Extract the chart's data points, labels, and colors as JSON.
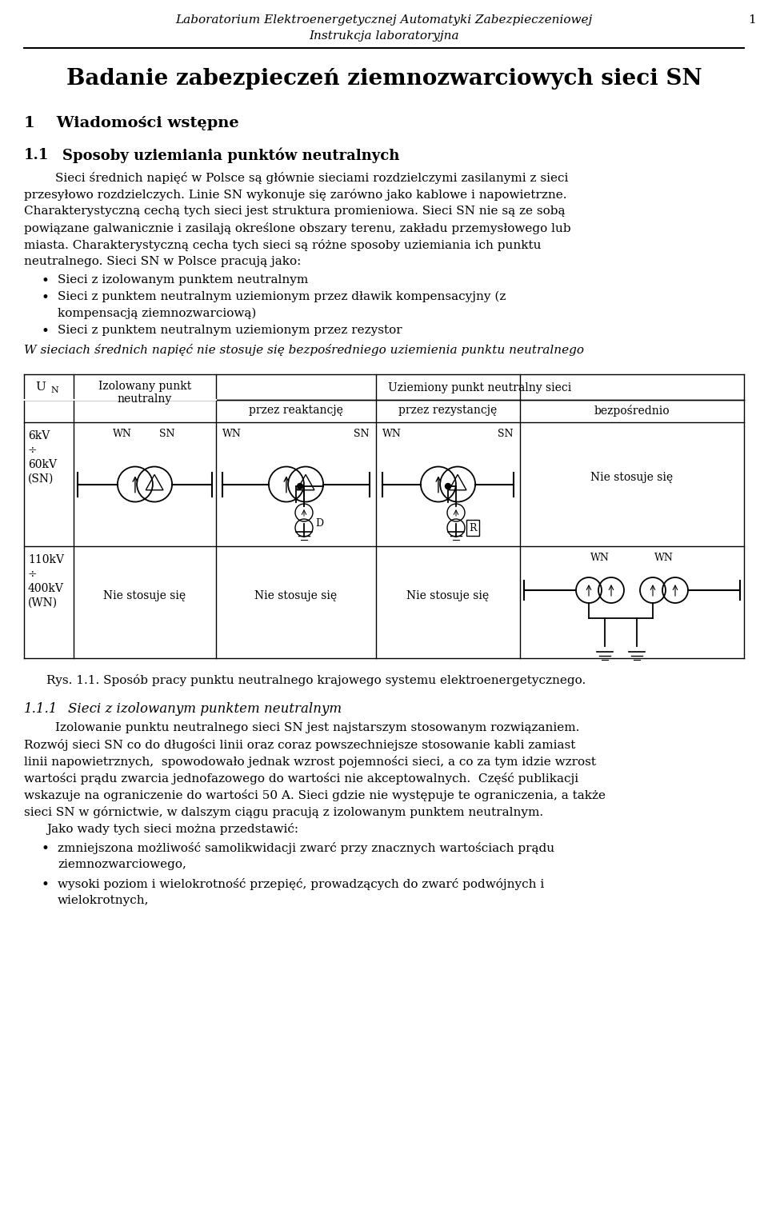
{
  "header_line1": "Laboratorium Elektroenergetycznej Automatyki Zabezpieczeniowej",
  "header_line2": "Instrukcja laboratoryjna",
  "page_number": "1",
  "title": "Badanie zabezpieczeń ziemnozwarciowych sieci SN",
  "section1": "1    Wiadomości wstępne",
  "section1_1_num": "1.1",
  "section1_1_txt": "Sposoby uziemiania punktów neutralnych",
  "fig_caption": "Rys. 1.1. Sposób pracy punktu neutralnego krajowego systemu elektroenergetycznego.",
  "section1_1_1_num": "1.1.1",
  "section1_1_1_txt": "Sieci z izolowanym punktem neutralnym"
}
